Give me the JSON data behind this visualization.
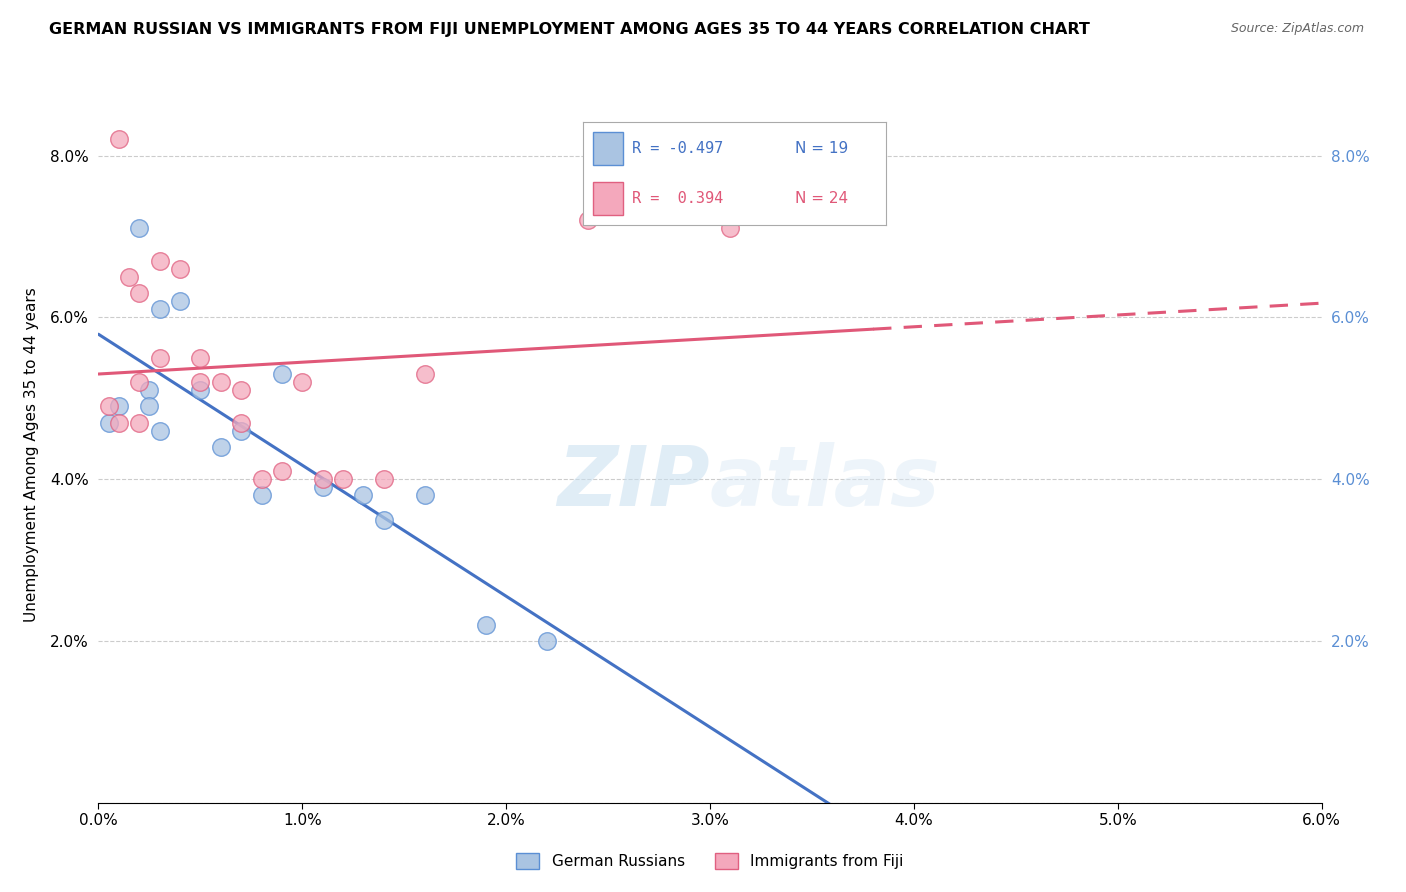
{
  "title": "GERMAN RUSSIAN VS IMMIGRANTS FROM FIJI UNEMPLOYMENT AMONG AGES 35 TO 44 YEARS CORRELATION CHART",
  "source": "Source: ZipAtlas.com",
  "ylabel": "Unemployment Among Ages 35 to 44 years",
  "xlim": [
    0.0,
    0.06
  ],
  "ylim": [
    0.0,
    0.086
  ],
  "xticks": [
    0.0,
    0.01,
    0.02,
    0.03,
    0.04,
    0.05,
    0.06
  ],
  "yticks": [
    0.0,
    0.02,
    0.04,
    0.06,
    0.08
  ],
  "xticklabels": [
    "0.0%",
    "1.0%",
    "2.0%",
    "3.0%",
    "4.0%",
    "5.0%",
    "6.0%"
  ],
  "yticklabels": [
    "",
    "2.0%",
    "4.0%",
    "6.0%",
    "8.0%"
  ],
  "blue_label": "German Russians",
  "pink_label": "Immigrants from Fiji",
  "blue_R": "-0.497",
  "blue_N": "19",
  "pink_R": " 0.394",
  "pink_N": "24",
  "blue_fill": "#aac4e2",
  "pink_fill": "#f4a8bc",
  "blue_edge": "#5b8fd4",
  "pink_edge": "#e06080",
  "blue_line": "#4472c4",
  "pink_line": "#e05878",
  "watermark_color": "#c8dff0",
  "blue_points_x": [
    0.0005,
    0.001,
    0.002,
    0.0025,
    0.0025,
    0.003,
    0.003,
    0.004,
    0.005,
    0.006,
    0.007,
    0.008,
    0.009,
    0.011,
    0.013,
    0.014,
    0.016,
    0.019,
    0.022
  ],
  "blue_points_y": [
    0.047,
    0.049,
    0.071,
    0.051,
    0.049,
    0.061,
    0.046,
    0.062,
    0.051,
    0.044,
    0.046,
    0.038,
    0.053,
    0.039,
    0.038,
    0.035,
    0.038,
    0.022,
    0.02
  ],
  "pink_points_x": [
    0.0005,
    0.001,
    0.001,
    0.0015,
    0.002,
    0.002,
    0.002,
    0.003,
    0.003,
    0.004,
    0.005,
    0.005,
    0.006,
    0.007,
    0.007,
    0.008,
    0.009,
    0.01,
    0.011,
    0.012,
    0.014,
    0.016,
    0.024,
    0.031
  ],
  "pink_points_y": [
    0.049,
    0.082,
    0.047,
    0.065,
    0.052,
    0.063,
    0.047,
    0.067,
    0.055,
    0.066,
    0.055,
    0.052,
    0.052,
    0.051,
    0.047,
    0.04,
    0.041,
    0.052,
    0.04,
    0.04,
    0.04,
    0.053,
    0.072,
    0.071
  ]
}
